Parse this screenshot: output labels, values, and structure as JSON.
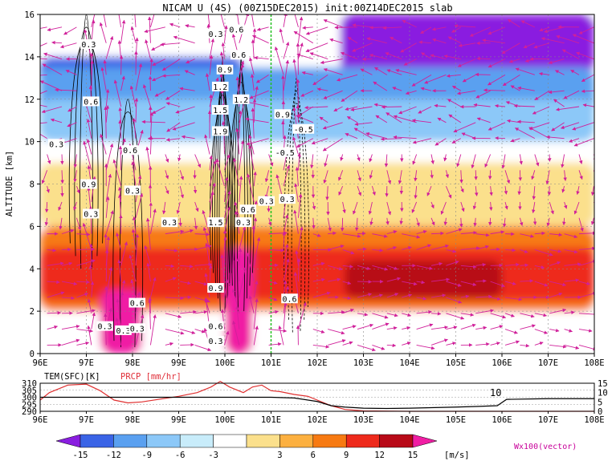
{
  "title": "NICAM U (4S) (00Z15DEC2015) init:00Z14DEC2015 slab",
  "colors": {
    "bins": [
      "#8a1ee0",
      "#3a64e6",
      "#5aa0f0",
      "#8cc8f8",
      "#c8ecfa",
      "#ffffff",
      "#fbe08c",
      "#fcb040",
      "#f77a12",
      "#ee2a1c",
      "#b80a18",
      "#f01ea4"
    ],
    "vector": "#d0209a",
    "wind_contour": "#000000",
    "precip": "#e03030",
    "surface_temp": "#000000",
    "meridian": "#22c020"
  },
  "chart_data": [
    {
      "type": "heatmap",
      "title": "NICAM U (4S) (00Z15DEC2015) init:00Z14DEC2015 slab",
      "xlabel": "",
      "ylabel": "ALTITUDE [km]",
      "x_ticks": [
        "96E",
        "97E",
        "98E",
        "99E",
        "100E",
        "101E",
        "102E",
        "103E",
        "104E",
        "105E",
        "106E",
        "107E",
        "108E"
      ],
      "y_ticks": [
        "0",
        "2",
        "4",
        "6",
        "8",
        "10",
        "12",
        "14",
        "16"
      ],
      "xlim": [
        96,
        108
      ],
      "ylim": [
        0,
        16
      ],
      "grid": true,
      "colorbar_levels": [
        "-15",
        "-12",
        "-9",
        "-6",
        "-3",
        "3",
        "6",
        "9",
        "12",
        "15"
      ],
      "colorbar_unit": "[m/s]",
      "vector_legend": "Wx100(vector)",
      "shading_zones": [
        {
          "name": "upper-easterlies",
          "bin": 0,
          "x": [
            102.5,
            108
          ],
          "y": [
            13.2,
            16
          ]
        },
        {
          "name": "upper-easterlies-west",
          "bin": 1,
          "x": [
            96,
            100.4
          ],
          "y": [
            10.4,
            14
          ]
        },
        {
          "name": "upper-level-band",
          "bin": 2,
          "x": [
            96,
            108
          ],
          "y": [
            11,
            13.5
          ]
        },
        {
          "name": "upper-level-band-light",
          "bin": 3,
          "x": [
            96,
            108
          ],
          "y": [
            10,
            12
          ]
        },
        {
          "name": "mid-level-weak-east",
          "bin": 6,
          "x": [
            96,
            108
          ],
          "y": [
            6,
            9
          ]
        },
        {
          "name": "low-level-westerlies",
          "bin": 8,
          "x": [
            96,
            108
          ],
          "y": [
            2,
            6
          ]
        },
        {
          "name": "jet-core",
          "bin": 9,
          "x": [
            96,
            108
          ],
          "y": [
            2.5,
            5
          ]
        },
        {
          "name": "jet-maximum",
          "bin": 10,
          "x": [
            102.6,
            106
          ],
          "y": [
            2.6,
            4.4
          ]
        },
        {
          "name": "strong-westerly-surface",
          "bin": 11,
          "x": [
            97.3,
            98.2
          ],
          "y": [
            0,
            3
          ]
        },
        {
          "name": "strong-westerly-convection",
          "bin": 11,
          "x": [
            100,
            100.6
          ],
          "y": [
            0,
            5
          ]
        }
      ],
      "contour_labels": [
        {
          "text": "0.3",
          "x": 97.05,
          "y": 14.6
        },
        {
          "text": "0.6",
          "x": 97.1,
          "y": 11.9
        },
        {
          "text": "0.3",
          "x": 96.35,
          "y": 9.9
        },
        {
          "text": "0.9",
          "x": 97.05,
          "y": 8.0
        },
        {
          "text": "0.3",
          "x": 97.1,
          "y": 6.6
        },
        {
          "text": "0.3",
          "x": 98.0,
          "y": 7.7
        },
        {
          "text": "0.6",
          "x": 97.95,
          "y": 9.6
        },
        {
          "text": "0.3",
          "x": 98.8,
          "y": 6.2
        },
        {
          "text": "0.6",
          "x": 98.1,
          "y": 2.4
        },
        {
          "text": "0.3",
          "x": 97.8,
          "y": 1.1
        },
        {
          "text": "0.3",
          "x": 97.4,
          "y": 1.3
        },
        {
          "text": "0.3",
          "x": 98.1,
          "y": 1.2
        },
        {
          "text": "0.6",
          "x": 99.8,
          "y": 1.3
        },
        {
          "text": "0.3",
          "x": 99.8,
          "y": 0.6
        },
        {
          "text": "0.9",
          "x": 99.8,
          "y": 3.1
        },
        {
          "text": "1.5",
          "x": 99.8,
          "y": 6.2
        },
        {
          "text": "0.3",
          "x": 100.4,
          "y": 6.2
        },
        {
          "text": "1.2",
          "x": 99.9,
          "y": 12.6
        },
        {
          "text": "1.5",
          "x": 99.9,
          "y": 11.5
        },
        {
          "text": "1.9",
          "x": 99.9,
          "y": 10.5
        },
        {
          "text": "0.6",
          "x": 100.3,
          "y": 14.1
        },
        {
          "text": "0.9",
          "x": 100.0,
          "y": 13.4
        },
        {
          "text": "0.3",
          "x": 99.8,
          "y": 15.1
        },
        {
          "text": "0.6",
          "x": 100.25,
          "y": 15.3
        },
        {
          "text": "0.6",
          "x": 100.5,
          "y": 6.8
        },
        {
          "text": "0.3",
          "x": 101.35,
          "y": 7.3
        },
        {
          "text": "-0.5",
          "x": 101.7,
          "y": 10.6
        },
        {
          "text": "-0.5",
          "x": 101.3,
          "y": 9.5
        },
        {
          "text": "0.3",
          "x": 100.9,
          "y": 7.2
        },
        {
          "text": "0.6",
          "x": 101.4,
          "y": 2.6
        },
        {
          "text": "0.9",
          "x": 101.25,
          "y": 11.3
        },
        {
          "text": "1.2",
          "x": 100.35,
          "y": 12.0
        }
      ]
    },
    {
      "type": "line",
      "title": "",
      "series": [
        {
          "name": "TEM(SFC)[K]",
          "x": [
            96,
            96.5,
            97,
            98,
            99,
            100,
            101,
            101.5,
            102,
            102.3,
            102.6,
            103,
            103.5,
            104,
            105,
            105.5,
            105.9,
            106.1,
            107,
            108
          ],
          "y": [
            300,
            300,
            300,
            300,
            300,
            300,
            300,
            299.5,
            297,
            294,
            293,
            292.2,
            292,
            292.2,
            293,
            293.5,
            294,
            298.5,
            299,
            299
          ]
        },
        {
          "name": "PRCP [mm/hr]",
          "x": [
            96,
            96.2,
            96.6,
            97,
            97.3,
            97.6,
            97.9,
            98.2,
            98.6,
            99,
            99.4,
            99.7,
            99.9,
            100.1,
            100.4,
            100.6,
            100.8,
            101,
            101.2,
            101.5,
            101.8,
            102,
            102.3,
            102.6,
            103,
            104,
            105,
            106,
            107,
            108
          ],
          "y": [
            6,
            10,
            14,
            14.5,
            11,
            6,
            4.5,
            5,
            6.5,
            8,
            10,
            13,
            16,
            13,
            10,
            13,
            14,
            11,
            10.5,
            9,
            8,
            6,
            3,
            1,
            0.2,
            0,
            0,
            0,
            0,
            0
          ]
        }
      ],
      "left_axis_label": "TEM(SFC)[K]",
      "left_ticks": [
        "310",
        "305",
        "300",
        "295",
        "290"
      ],
      "right_axis_label": "PRCP [mm/hr]",
      "right_ticks": [
        "15",
        "10",
        "5",
        "0"
      ],
      "annotation": "10",
      "x_ticks": [
        "96E",
        "97E",
        "98E",
        "99E",
        "100E",
        "101E",
        "102E",
        "103E",
        "104E",
        "105E",
        "106E",
        "107E",
        "108E"
      ],
      "ylim_left": [
        290,
        310
      ],
      "ylim_right": [
        0,
        15
      ]
    }
  ]
}
